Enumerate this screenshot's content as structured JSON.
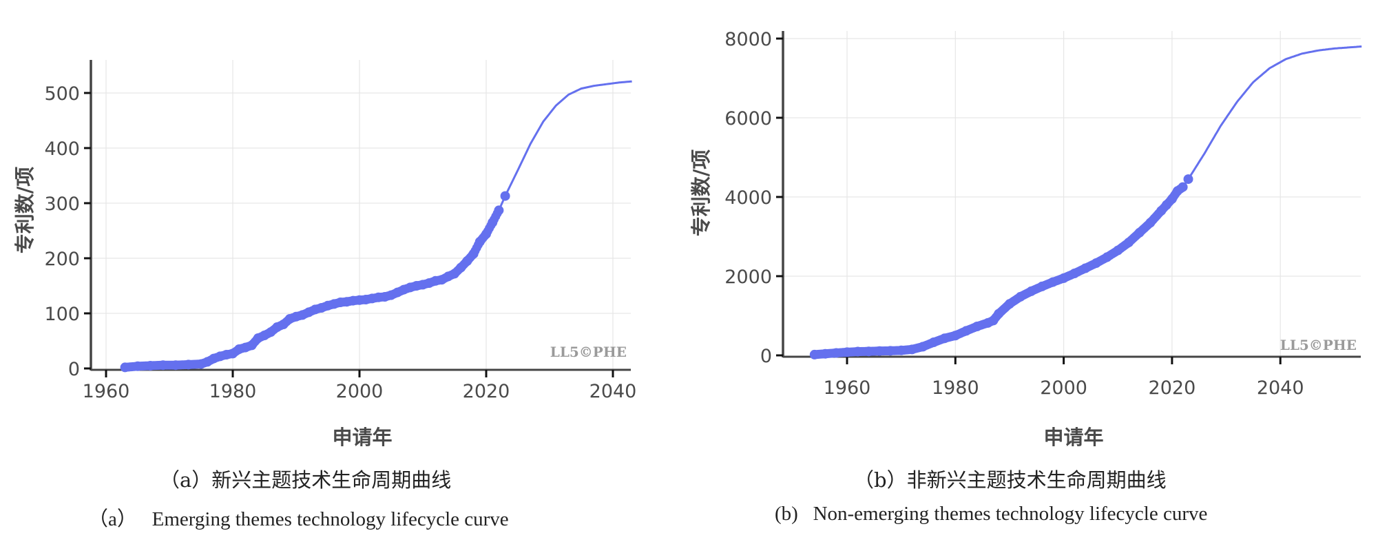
{
  "accent_color": "#6470ee",
  "chart_data": [
    {
      "type": "scatter",
      "panel": "a",
      "title": "",
      "xlabel": "申请年",
      "ylabel": "专利数/项",
      "xlim": [
        1957,
        2043
      ],
      "ylim": [
        0,
        550
      ],
      "grid": true,
      "x_ticks": [
        1960,
        1980,
        2000,
        2020,
        2040
      ],
      "y_ticks": [
        0,
        100,
        200,
        300,
        400,
        500
      ],
      "x_tick_labels": [
        "1960",
        "1980",
        "2000",
        "2020",
        "2040"
      ],
      "y_tick_labels": [
        "0",
        "100",
        "200",
        "300",
        "400",
        "500"
      ],
      "watermark": "LL5©PHE",
      "caption_cn": "（a）新兴主题技术生命周期曲线",
      "caption_en": "（a）   Emerging themes technology lifecycle curve",
      "series": [
        {
          "name": "observed",
          "kind": "points",
          "x": [
            1963,
            1965,
            1967,
            1969,
            1971,
            1973,
            1975,
            1976,
            1977,
            1978,
            1979,
            1980,
            1981,
            1982,
            1983,
            1984,
            1985,
            1986,
            1987,
            1988,
            1989,
            1990,
            1991,
            1992,
            1993,
            1994,
            1995,
            1996,
            1997,
            1998,
            1999,
            2000,
            2001,
            2002,
            2003,
            2004,
            2005,
            2006,
            2007,
            2008,
            2009,
            2010,
            2011,
            2012,
            2013,
            2014,
            2015,
            2016,
            2017,
            2018,
            2019,
            2020,
            2021,
            2022,
            2023
          ],
          "y": [
            2,
            4,
            5,
            6,
            6,
            7,
            8,
            12,
            18,
            22,
            25,
            27,
            35,
            38,
            42,
            55,
            60,
            66,
            75,
            80,
            90,
            94,
            97,
            102,
            107,
            110,
            114,
            117,
            120,
            121,
            123,
            124,
            125,
            127,
            129,
            130,
            133,
            138,
            143,
            147,
            150,
            152,
            155,
            159,
            161,
            167,
            172,
            183,
            195,
            208,
            230,
            244,
            265,
            287,
            313
          ]
        },
        {
          "name": "fitted",
          "kind": "line",
          "x": [
            2023,
            2025,
            2027,
            2029,
            2031,
            2033,
            2035,
            2037,
            2039,
            2041,
            2043
          ],
          "y": [
            313,
            360,
            408,
            448,
            477,
            497,
            508,
            513,
            516,
            519,
            521
          ]
        }
      ]
    },
    {
      "type": "scatter",
      "panel": "b",
      "title": "",
      "xlabel": "申请年",
      "ylabel": "专利数/项",
      "xlim": [
        1947,
        2055
      ],
      "ylim": [
        0,
        8200
      ],
      "grid": true,
      "x_ticks": [
        1960,
        1980,
        2000,
        2020,
        2040
      ],
      "y_ticks": [
        0,
        2000,
        4000,
        6000,
        8000
      ],
      "x_tick_labels": [
        "1960",
        "1980",
        "2000",
        "2020",
        "2040"
      ],
      "y_tick_labels": [
        "0",
        "2000",
        "4000",
        "6000",
        "8000"
      ],
      "watermark": "LL5©PHE",
      "caption_cn": "（b）非新兴主题技术生命周期曲线",
      "caption_en": "(b)   Non-emerging themes technology lifecycle curve",
      "series": [
        {
          "name": "observed",
          "kind": "points",
          "x": [
            1954,
            1956,
            1958,
            1960,
            1962,
            1964,
            1966,
            1968,
            1970,
            1972,
            1974,
            1976,
            1978,
            1980,
            1982,
            1984,
            1986,
            1987,
            1988,
            1990,
            1992,
            1994,
            1996,
            1998,
            2000,
            2002,
            2004,
            2006,
            2008,
            2010,
            2012,
            2014,
            2016,
            2018,
            2019,
            2020,
            2021,
            2022,
            2023
          ],
          "y": [
            20,
            40,
            60,
            80,
            95,
            100,
            110,
            115,
            125,
            150,
            220,
            330,
            430,
            500,
            620,
            730,
            820,
            880,
            1050,
            1300,
            1480,
            1620,
            1740,
            1850,
            1950,
            2070,
            2200,
            2330,
            2480,
            2650,
            2850,
            3100,
            3350,
            3650,
            3800,
            3950,
            4150,
            4250,
            4450
          ]
        },
        {
          "name": "fitted",
          "kind": "line",
          "x": [
            2023,
            2026,
            2029,
            2032,
            2035,
            2038,
            2041,
            2044,
            2047,
            2050,
            2053,
            2055
          ],
          "y": [
            4450,
            5100,
            5800,
            6400,
            6900,
            7250,
            7480,
            7620,
            7700,
            7750,
            7780,
            7800
          ]
        }
      ]
    }
  ]
}
